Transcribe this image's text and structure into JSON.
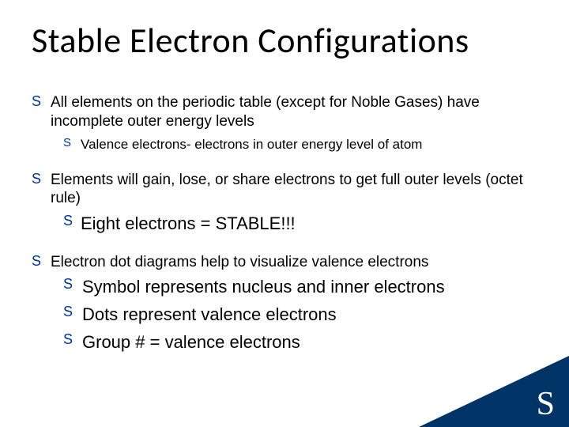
{
  "colors": {
    "bullet": "#003399",
    "corner_bg": "#003366",
    "corner_text": "#ffffff",
    "text": "#000000",
    "background": "#ffffff"
  },
  "title": "Stable Electron Configurations",
  "bullet_glyph": "S",
  "corner_glyph": "S",
  "points": [
    {
      "text": "All elements on the periodic table (except for Noble Gases) have incomplete outer energy levels",
      "sub": [
        {
          "text": "Valence electrons- electrons in outer energy level of atom",
          "size": "small"
        }
      ]
    },
    {
      "text": "Elements will gain, lose, or share electrons to get full outer levels (octet rule)",
      "sub": [
        {
          "text": "Eight electrons = STABLE!!!",
          "size": "large"
        }
      ]
    },
    {
      "text": "Electron dot diagrams help to visualize valence electrons",
      "sub": [
        {
          "text": "Symbol represents nucleus and inner electrons",
          "size": "large"
        },
        {
          "text": "Dots represent valence electrons",
          "size": "large"
        },
        {
          "text": "Group # = valence electrons",
          "size": "large"
        }
      ]
    }
  ]
}
